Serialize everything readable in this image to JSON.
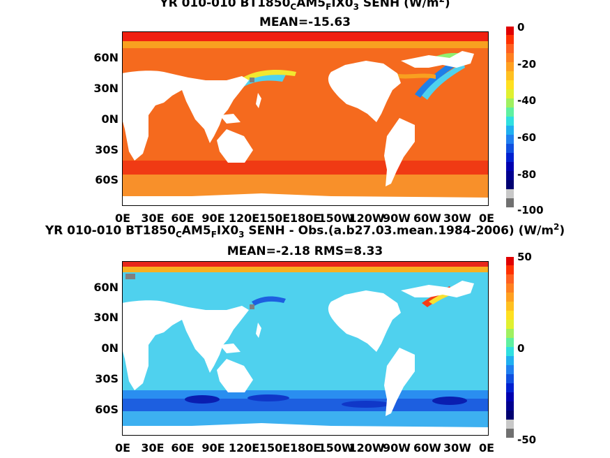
{
  "top": {
    "title_prefix": "YR 010-010 BT1850",
    "title_sub1": "C",
    "title_mid1": "AM5",
    "title_sub2": "F",
    "title_mid2": "IX0",
    "title_sub3": "3",
    "title_suffix": "  SENH (W/m",
    "title_sup": "2",
    "title_end": ")",
    "subtitle": "MEAN=-15.63",
    "colorbar_ticks": [
      "0",
      "-20",
      "-40",
      "-60",
      "-80",
      "-100"
    ]
  },
  "bottom": {
    "title_prefix": "YR 010-010 BT1850",
    "title_sub1": "C",
    "title_mid1": "AM5",
    "title_sub2": "F",
    "title_mid2": "IX0",
    "title_sub3": "3",
    "title_suffix": " SENH - Obs.(a.b27.03.mean.1984-2006) (W/m",
    "title_sup": "2",
    "title_end": ")",
    "subtitle": "MEAN=-2.18 RMS=8.33",
    "colorbar_ticks": [
      "50",
      "0",
      "-50"
    ]
  },
  "lat_labels": [
    "60N",
    "30N",
    "0N",
    "30S",
    "60S"
  ],
  "lon_labels": [
    "0E",
    "30E",
    "60E",
    "90E",
    "120E",
    "150E",
    "180E",
    "150W",
    "120W",
    "90W",
    "60W",
    "30W",
    "0E"
  ],
  "colors": {
    "top_ocean": "#f56a1e",
    "bottom_ocean": "#4fd1ee",
    "land": "#ffffff",
    "missing": "#808080"
  }
}
